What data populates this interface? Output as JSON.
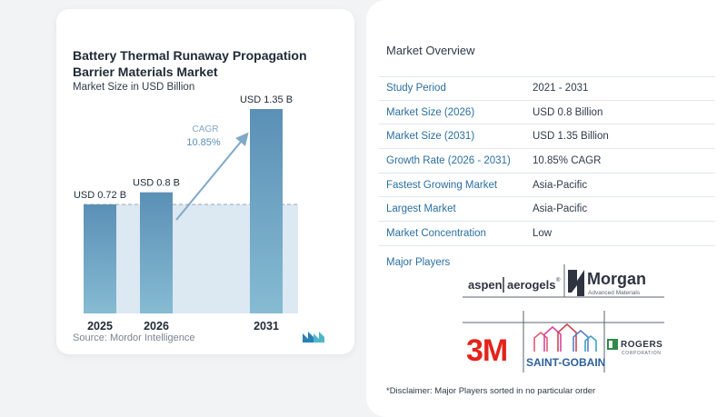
{
  "chart_data": {
    "type": "bar",
    "title": "Battery Thermal Runaway Propagation Barrier Materials Market",
    "subtitle": "Market Size in USD Billion",
    "categories": [
      "2025",
      "2026",
      "2031"
    ],
    "values": [
      0.72,
      0.8,
      1.35
    ],
    "data_labels": [
      "USD 0.72 B",
      "USD 0.8 B",
      "USD 1.35 B"
    ],
    "xlabel": "",
    "ylabel": "",
    "ylim": [
      0,
      1.5
    ],
    "grid": false,
    "legend": "none",
    "cagr": {
      "label": "CAGR",
      "value": "10.85%"
    },
    "colors": {
      "bar": "#5f95ba",
      "bar_light": "#7db3cf",
      "band": "#dce8f2",
      "arrow": "#7fa9c8"
    }
  },
  "source": "Source: Mordor Intelligence",
  "overview": {
    "title": "Market Overview",
    "rows": [
      {
        "label": "Study Period",
        "value": "2021 - 2031"
      },
      {
        "label": "Market Size (2026)",
        "value": "USD 0.8 Billion"
      },
      {
        "label": "Market Size (2031)",
        "value": "USD 1.35 Billion"
      },
      {
        "label": "Growth Rate (2026 - 2031)",
        "value": "10.85% CAGR"
      },
      {
        "label": "Fastest Growing Market",
        "value": "Asia-Pacific"
      },
      {
        "label": "Largest Market",
        "value": "Asia-Pacific"
      },
      {
        "label": "Market Concentration",
        "value": "Low"
      }
    ]
  },
  "players": {
    "title": "Major Players",
    "aspen": {
      "word1": "aspen",
      "word2": "aerogels",
      "mark": "®"
    },
    "morgan": {
      "name": "Morgan",
      "tagline": "Advanced Materials"
    },
    "threem": {
      "name": "3M"
    },
    "saint_gobain": {
      "name": "SAINT-GOBAIN"
    },
    "rogers": {
      "name": "ROGERS",
      "tagline": "CORPORATION"
    }
  },
  "disclaimer": "*Disclaimer: Major Players sorted in no particular order"
}
